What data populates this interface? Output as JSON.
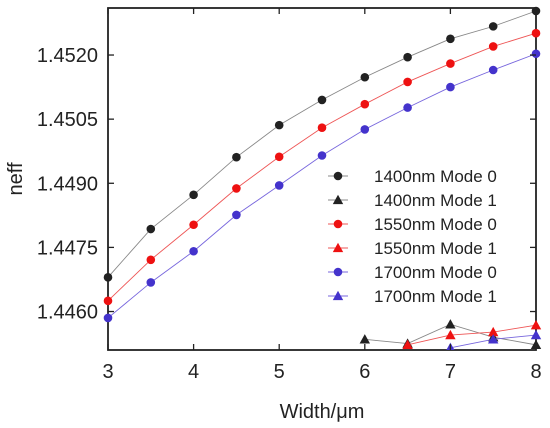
{
  "chart_data": {
    "type": "line",
    "title": "",
    "xlabel": "Width/μm",
    "ylabel": "neff",
    "xlim": [
      3,
      8
    ],
    "ylim": [
      1.4451,
      1.4531
    ],
    "xticks": [
      "3",
      "4",
      "5",
      "6",
      "7",
      "8"
    ],
    "yticks": [
      "1.4460",
      "1.4475",
      "1.4490",
      "1.4505",
      "1.4520"
    ],
    "grid": false,
    "legend_position": "bottom-right",
    "series": [
      {
        "name": "1400nm Mode 0",
        "color": "#222222",
        "line_color": "#888888",
        "marker": "circle",
        "x": [
          3,
          3.5,
          4,
          4.5,
          5,
          5.5,
          6,
          6.5,
          7,
          7.5,
          8
        ],
        "y": [
          1.4468,
          1.44793,
          1.44873,
          1.44961,
          1.45036,
          1.45095,
          1.45148,
          1.45195,
          1.45238,
          1.45267,
          1.45303
        ]
      },
      {
        "name": "1400nm Mode 1",
        "color": "#222222",
        "line_color": "#888888",
        "marker": "triangle",
        "x": [
          6,
          6.5,
          7,
          7.5,
          8
        ],
        "y": [
          1.44535,
          1.44525,
          1.4457,
          1.4454,
          1.44522
        ]
      },
      {
        "name": "1550nm Mode 0",
        "color": "#ee1111",
        "line_color": "#ee5555",
        "marker": "circle",
        "x": [
          3,
          3.5,
          4,
          4.5,
          5,
          5.5,
          6,
          6.5,
          7,
          7.5,
          8
        ],
        "y": [
          1.44625,
          1.44721,
          1.44803,
          1.44888,
          1.44962,
          1.4503,
          1.45085,
          1.45137,
          1.4518,
          1.4522,
          1.45251
        ]
      },
      {
        "name": "1550nm Mode 1",
        "color": "#ee1111",
        "line_color": "#ee5555",
        "marker": "triangle",
        "x": [
          6.5,
          7,
          7.5,
          8
        ],
        "y": [
          1.44522,
          1.44545,
          1.44552,
          1.44568
        ]
      },
      {
        "name": "1700nm Mode 0",
        "color": "#4433cc",
        "line_color": "#7766dd",
        "marker": "circle",
        "x": [
          3,
          3.5,
          4,
          4.5,
          5,
          5.5,
          6,
          6.5,
          7,
          7.5,
          8
        ],
        "y": [
          1.44585,
          1.44668,
          1.44741,
          1.44826,
          1.44895,
          1.44965,
          1.45026,
          1.45077,
          1.45125,
          1.45165,
          1.45203
        ]
      },
      {
        "name": "1700nm Mode 1",
        "color": "#4433cc",
        "line_color": "#7766dd",
        "marker": "triangle",
        "x": [
          7,
          7.5,
          8
        ],
        "y": [
          1.44515,
          1.44535,
          1.44545
        ]
      }
    ]
  }
}
